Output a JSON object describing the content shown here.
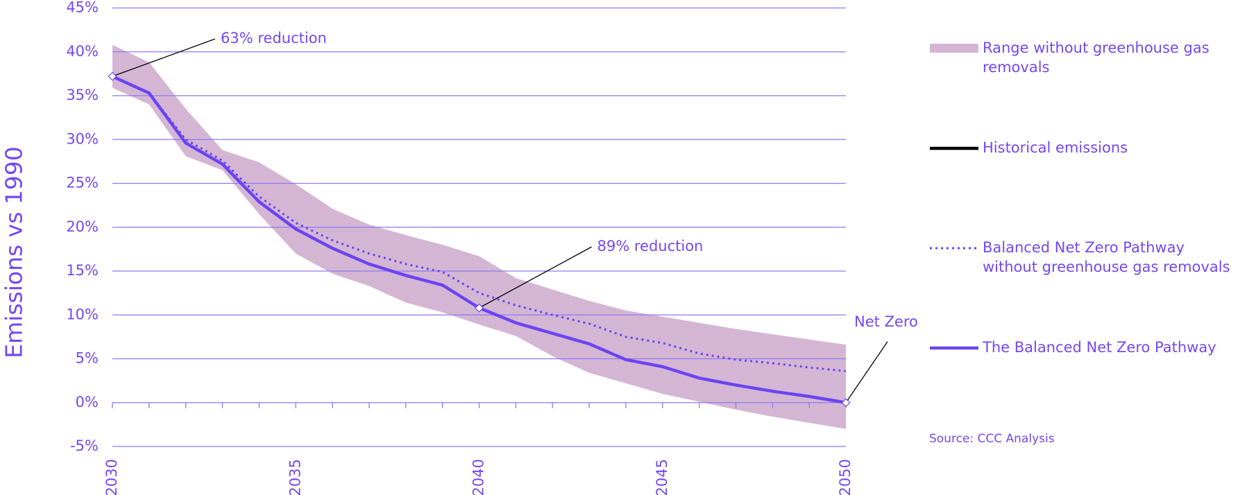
{
  "chart_data": {
    "type": "line",
    "y_label": "Emissions vs 1990",
    "source": "Source: CCC Analysis",
    "x": [
      2030,
      2031,
      2032,
      2033,
      2034,
      2035,
      2036,
      2037,
      2038,
      2039,
      2040,
      2041,
      2042,
      2043,
      2044,
      2045,
      2046,
      2047,
      2048,
      2049,
      2050
    ],
    "xlim": [
      2030,
      2050
    ],
    "xticks": [
      2030,
      2035,
      2040,
      2045,
      2050
    ],
    "ylim": [
      -5,
      45
    ],
    "yticks": [
      {
        "value": -5,
        "label": "-5%"
      },
      {
        "value": 0,
        "label": "0%"
      },
      {
        "value": 5,
        "label": "5%"
      },
      {
        "value": 10,
        "label": "10%"
      },
      {
        "value": 15,
        "label": "15%"
      },
      {
        "value": 20,
        "label": "20%"
      },
      {
        "value": 25,
        "label": "25%"
      },
      {
        "value": 30,
        "label": "30%"
      },
      {
        "value": 35,
        "label": "35%"
      },
      {
        "value": 40,
        "label": "40%"
      },
      {
        "value": 45,
        "label": "45%"
      }
    ],
    "grid": true,
    "range": {
      "name": "Range without greenhouse gas removals",
      "color": "#d4b6d4",
      "upper": [
        40.8,
        38.8,
        33.5,
        28.8,
        27.4,
        24.9,
        22.1,
        20.3,
        19.1,
        18.0,
        16.7,
        14.2,
        12.9,
        11.6,
        10.5,
        9.8,
        9.1,
        8.4,
        7.8,
        7.2,
        6.6
      ],
      "lower": [
        35.9,
        34.0,
        28.1,
        26.5,
        21.5,
        17.0,
        14.7,
        13.3,
        11.4,
        10.3,
        8.9,
        7.6,
        5.3,
        3.4,
        2.2,
        1.0,
        0.1,
        -0.8,
        -1.6,
        -2.3,
        -3.0
      ]
    },
    "series": [
      {
        "name": "Historical emissions",
        "color": "#000000",
        "style": "solid",
        "values": [
          null,
          null,
          null,
          null,
          null,
          null,
          null,
          null,
          null,
          null,
          null,
          null,
          null,
          null,
          null,
          null,
          null,
          null,
          null,
          null,
          null
        ]
      },
      {
        "name": "Balanced Net Zero Pathway without greenhouse gas removals",
        "color": "#6a44f2",
        "style": "dotted",
        "values": [
          37.2,
          35.3,
          30.0,
          27.6,
          23.5,
          20.5,
          18.5,
          17.0,
          15.8,
          14.9,
          12.5,
          11.1,
          10.0,
          9.0,
          7.5,
          6.8,
          5.6,
          4.9,
          4.5,
          4.0,
          3.6
        ]
      },
      {
        "name": "The Balanced Net Zero Pathway",
        "color": "#6a44f2",
        "style": "solid",
        "values": [
          37.2,
          35.3,
          29.6,
          27.2,
          22.9,
          19.8,
          17.6,
          15.8,
          14.5,
          13.4,
          10.8,
          9.1,
          7.9,
          6.7,
          4.9,
          4.1,
          2.8,
          2.0,
          1.3,
          0.7,
          0.0
        ]
      }
    ],
    "annotations": [
      {
        "text": "63% reduction",
        "x": 2030
      },
      {
        "text": "89% reduction",
        "x": 2040
      },
      {
        "text": "Net Zero",
        "x": 2050
      }
    ]
  }
}
